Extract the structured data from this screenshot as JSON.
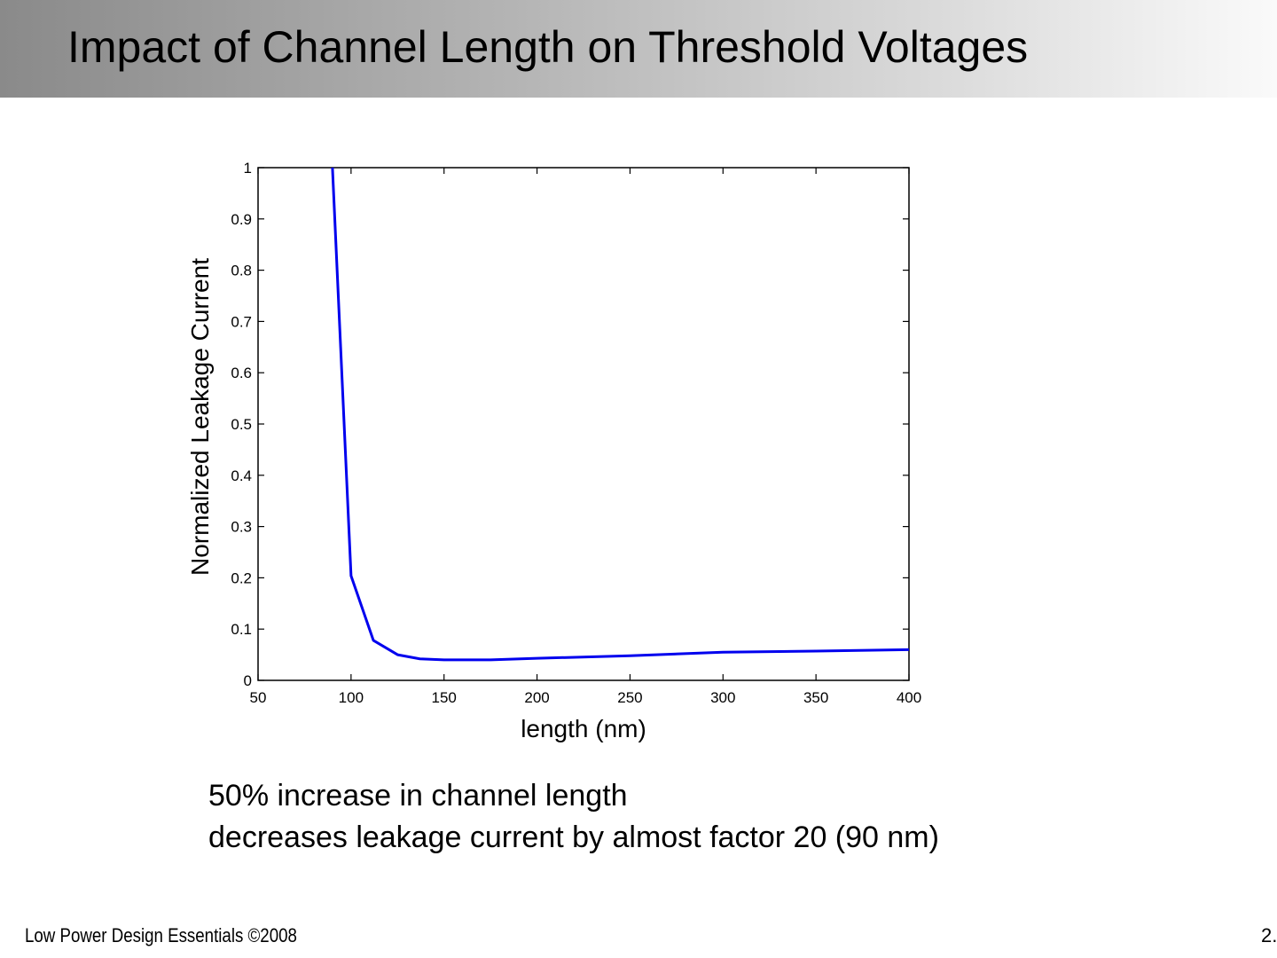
{
  "title": "Impact of Channel Length on Threshold Voltages",
  "caption": {
    "line1": "50% increase in channel length",
    "line2": "decreases leakage current by almost factor 20 (90 nm)"
  },
  "footer": {
    "left": "Low Power Design Essentials ©2008",
    "right": "2."
  },
  "chart_data": {
    "type": "line",
    "title": "",
    "xlabel": "length (nm)",
    "ylabel": "Normalized Leakage Current",
    "xlim": [
      50,
      400
    ],
    "ylim": [
      0,
      1
    ],
    "xticks": [
      50,
      100,
      150,
      200,
      250,
      300,
      350,
      400
    ],
    "yticks": [
      0,
      0.1,
      0.2,
      0.3,
      0.4,
      0.5,
      0.6,
      0.7,
      0.8,
      0.9,
      1
    ],
    "grid": false,
    "series": [
      {
        "name": "leakage",
        "color": "#0000ee",
        "x": [
          90,
          100,
          112,
          125,
          137,
          150,
          175,
          200,
          250,
          300,
          350,
          400
        ],
        "y": [
          1.0,
          0.204,
          0.078,
          0.05,
          0.042,
          0.04,
          0.04,
          0.043,
          0.048,
          0.055,
          0.057,
          0.06
        ]
      }
    ]
  }
}
